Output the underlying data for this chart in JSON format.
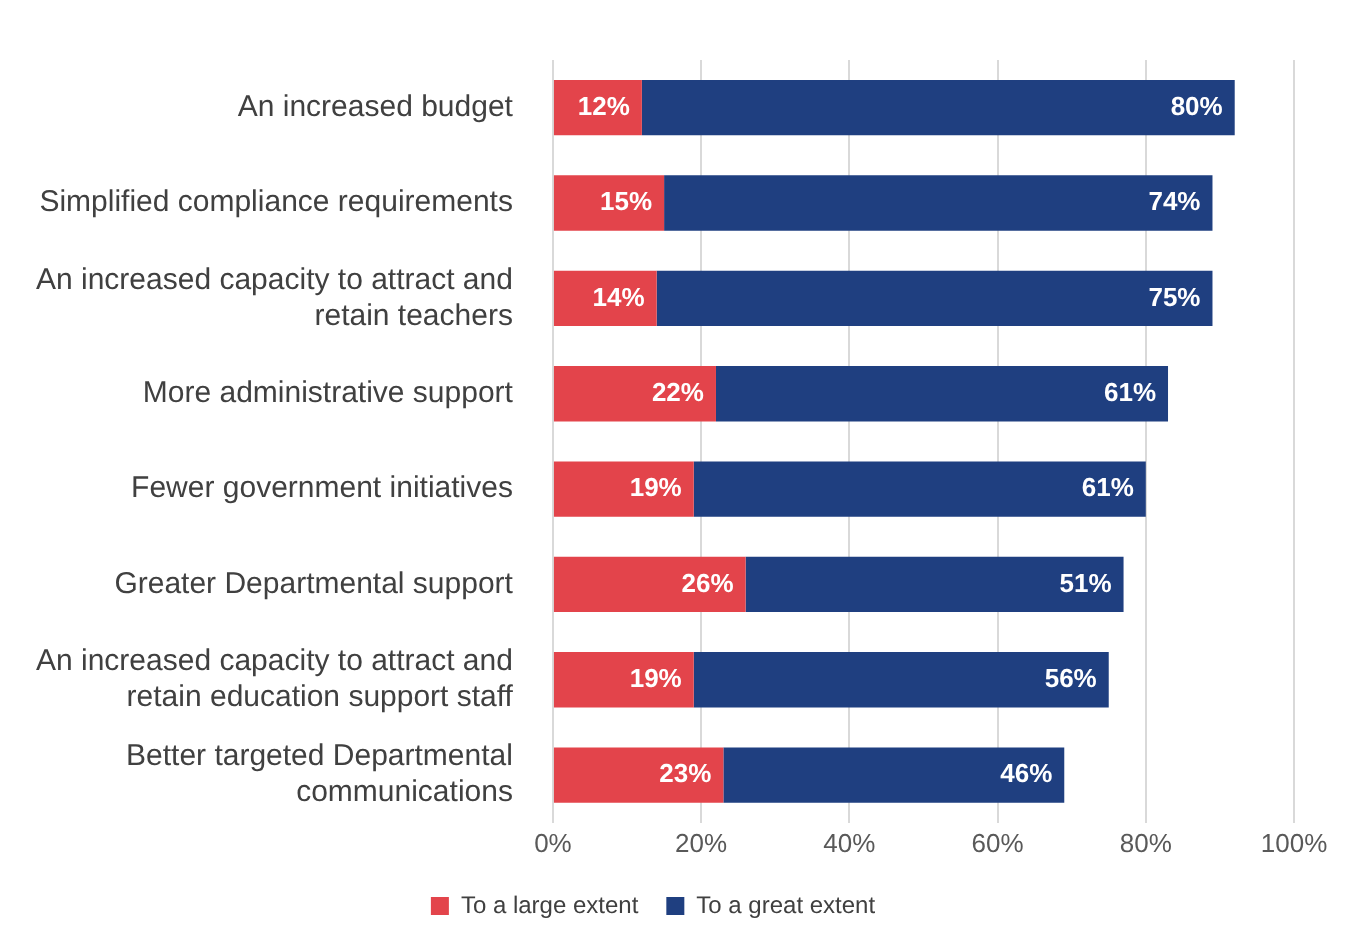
{
  "chart_data": {
    "type": "bar",
    "orientation": "horizontal",
    "stacked": true,
    "categories": [
      "An increased budget",
      "Simplified compliance requirements",
      "An increased capacity to attract and retain teachers",
      "More administrative support",
      "Fewer government initiatives",
      "Greater Departmental support",
      "An increased capacity to attract and retain education support staff",
      "Better targeted Departmental communications"
    ],
    "series": [
      {
        "name": "To a large extent",
        "color": "#e3444b",
        "values": [
          12,
          15,
          14,
          22,
          19,
          26,
          19,
          23
        ],
        "value_labels": [
          "12%",
          "15%",
          "14%",
          "22%",
          "19%",
          "26%",
          "19%",
          "23%"
        ]
      },
      {
        "name": "To a great extent",
        "color": "#1f3f80",
        "values": [
          80,
          74,
          75,
          61,
          61,
          51,
          56,
          46
        ],
        "value_labels": [
          "80%",
          "74%",
          "75%",
          "61%",
          "61%",
          "51%",
          "56%",
          "46%"
        ]
      }
    ],
    "xlim": [
      0,
      100
    ],
    "xticks": [
      {
        "value": 0,
        "label": "0%"
      },
      {
        "value": 20,
        "label": "20%"
      },
      {
        "value": 40,
        "label": "40%"
      },
      {
        "value": 60,
        "label": "60%"
      },
      {
        "value": 80,
        "label": "80%"
      },
      {
        "value": 100,
        "label": "100%"
      }
    ],
    "grid": "x",
    "legend": "bottom"
  }
}
